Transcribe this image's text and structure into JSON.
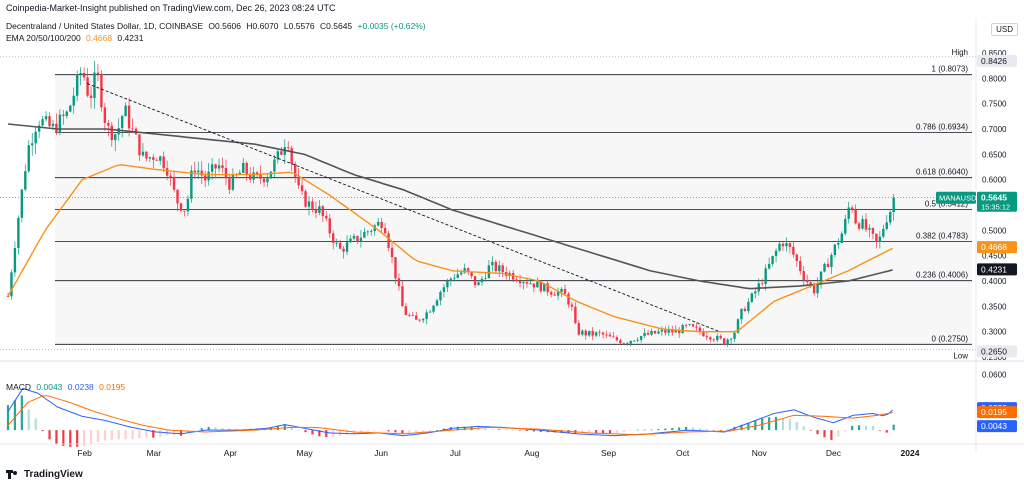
{
  "header": {
    "published": "Coinpedia-Market-Insight published on TradingView.com, Dec 26, 2023 08:24 UTC",
    "symbol": "Decentraland / United States Dollar, 1D, COINBASE",
    "open": "O0.5606",
    "high": "H0.6070",
    "low": "L0.5576",
    "close": "C0.5645",
    "change": "+0.0035 (+0.62%)",
    "ema_label": "EMA 20/50/100/200",
    "ema_a": "0.4668",
    "ema_b": "0.4231",
    "currency": "USD"
  },
  "macd_legend": {
    "label": "MACD",
    "hist": "0.0043",
    "macd": "0.0238",
    "signal": "0.0195"
  },
  "brand": "TradingView",
  "colors": {
    "up": "#089981",
    "down": "#f23645",
    "ema_fast": "#f7931a",
    "ema_slow": "#555555",
    "macd_line": "#2962ff",
    "signal_line": "#ff6d00"
  },
  "chart_data": [
    {
      "type": "candlestick",
      "title": "Decentraland / United States Dollar, 1D, COINBASE",
      "ylim": [
        0.25,
        0.86
      ],
      "y_ticks": [
        "0.8500",
        "0.8000",
        "0.7500",
        "0.7000",
        "0.6500",
        "0.6000",
        "0.5500",
        "0.5000",
        "0.4500",
        "0.4000",
        "0.3500",
        "0.3000",
        "0.2500"
      ],
      "y_tick_values": [
        0.85,
        0.8,
        0.75,
        0.7,
        0.65,
        0.6,
        0.55,
        0.5,
        0.45,
        0.4,
        0.35,
        0.3,
        0.25
      ],
      "x_ticks": [
        "Feb",
        "Mar",
        "Apr",
        "May",
        "Jun",
        "Jul",
        "Aug",
        "Sep",
        "Oct",
        "Nov",
        "Dec",
        "2024"
      ],
      "x_tick_days": [
        31,
        59,
        90,
        120,
        151,
        181,
        212,
        243,
        273,
        304,
        334,
        365
      ],
      "x_range_days": [
        0,
        365
      ],
      "price_anchors": [
        [
          0,
          0.37
        ],
        [
          4,
          0.52
        ],
        [
          8,
          0.66
        ],
        [
          12,
          0.72
        ],
        [
          18,
          0.7
        ],
        [
          24,
          0.73
        ],
        [
          28,
          0.79
        ],
        [
          30,
          0.82
        ],
        [
          33,
          0.76
        ],
        [
          36,
          0.81
        ],
        [
          40,
          0.7
        ],
        [
          44,
          0.69
        ],
        [
          47,
          0.74
        ],
        [
          50,
          0.7
        ],
        [
          55,
          0.64
        ],
        [
          60,
          0.65
        ],
        [
          64,
          0.63
        ],
        [
          68,
          0.56
        ],
        [
          72,
          0.54
        ],
        [
          75,
          0.63
        ],
        [
          80,
          0.6
        ],
        [
          85,
          0.63
        ],
        [
          90,
          0.59
        ],
        [
          95,
          0.62
        ],
        [
          100,
          0.6
        ],
        [
          105,
          0.61
        ],
        [
          110,
          0.65
        ],
        [
          113,
          0.69
        ],
        [
          115,
          0.63
        ],
        [
          118,
          0.57
        ],
        [
          122,
          0.55
        ],
        [
          126,
          0.54
        ],
        [
          130,
          0.5
        ],
        [
          134,
          0.46
        ],
        [
          140,
          0.48
        ],
        [
          146,
          0.5
        ],
        [
          152,
          0.52
        ],
        [
          156,
          0.43
        ],
        [
          160,
          0.34
        ],
        [
          165,
          0.32
        ],
        [
          170,
          0.34
        ],
        [
          175,
          0.38
        ],
        [
          180,
          0.41
        ],
        [
          185,
          0.42
        ],
        [
          190,
          0.39
        ],
        [
          195,
          0.43
        ],
        [
          200,
          0.42
        ],
        [
          205,
          0.41
        ],
        [
          210,
          0.4
        ],
        [
          215,
          0.39
        ],
        [
          220,
          0.38
        ],
        [
          225,
          0.375
        ],
        [
          228,
          0.35
        ],
        [
          230,
          0.3
        ],
        [
          235,
          0.295
        ],
        [
          240,
          0.295
        ],
        [
          245,
          0.285
        ],
        [
          250,
          0.28
        ],
        [
          255,
          0.29
        ],
        [
          260,
          0.295
        ],
        [
          265,
          0.3
        ],
        [
          270,
          0.3
        ],
        [
          275,
          0.31
        ],
        [
          280,
          0.3
        ],
        [
          285,
          0.29
        ],
        [
          290,
          0.28
        ],
        [
          294,
          0.3
        ],
        [
          297,
          0.34
        ],
        [
          300,
          0.36
        ],
        [
          305,
          0.4
        ],
        [
          310,
          0.45
        ],
        [
          313,
          0.48
        ],
        [
          317,
          0.46
        ],
        [
          322,
          0.41
        ],
        [
          326,
          0.38
        ],
        [
          330,
          0.42
        ],
        [
          334,
          0.46
        ],
        [
          338,
          0.5
        ],
        [
          341,
          0.56
        ],
        [
          343,
          0.52
        ],
        [
          346,
          0.51
        ],
        [
          349,
          0.49
        ],
        [
          352,
          0.47
        ],
        [
          355,
          0.52
        ],
        [
          358,
          0.55
        ],
        [
          359,
          0.5645
        ]
      ],
      "fib_levels": [
        {
          "label": "1 (0.8073)",
          "value": 0.8073
        },
        {
          "label": "0.786 (0.6934)",
          "value": 0.6934
        },
        {
          "label": "0.618 (0.6040)",
          "value": 0.604
        },
        {
          "label": "0.5 (0.5412)",
          "value": 0.5412
        },
        {
          "label": "0.382 (0.4783)",
          "value": 0.4783
        },
        {
          "label": "0.236 (0.4006)",
          "value": 0.4006
        },
        {
          "label": "0 (0.2750)",
          "value": 0.275
        }
      ],
      "high": {
        "label": "High",
        "value": 0.8426,
        "text": "0.8426"
      },
      "low": {
        "label": "Low",
        "value": 0.265,
        "text": "0.2650"
      },
      "last_price": {
        "symbol": "MANAUSD",
        "value": 0.5645,
        "text": "0.5645",
        "countdown": "15:35:12"
      },
      "ema_tags": [
        {
          "value": 0.4668,
          "text": "0.4668",
          "color": "#f7931a"
        },
        {
          "value": 0.4231,
          "text": "0.4231",
          "color": "#131722"
        }
      ],
      "trendline": {
        "from": [
          32,
          0.79
        ],
        "to": [
          288,
          0.3
        ]
      },
      "ema_fast_anchors": [
        [
          0,
          0.37
        ],
        [
          15,
          0.5
        ],
        [
          30,
          0.6
        ],
        [
          45,
          0.63
        ],
        [
          60,
          0.62
        ],
        [
          80,
          0.61
        ],
        [
          100,
          0.61
        ],
        [
          115,
          0.615
        ],
        [
          130,
          0.57
        ],
        [
          150,
          0.5
        ],
        [
          165,
          0.44
        ],
        [
          180,
          0.42
        ],
        [
          200,
          0.415
        ],
        [
          215,
          0.4
        ],
        [
          230,
          0.36
        ],
        [
          245,
          0.33
        ],
        [
          265,
          0.305
        ],
        [
          280,
          0.3
        ],
        [
          295,
          0.3
        ],
        [
          310,
          0.36
        ],
        [
          325,
          0.39
        ],
        [
          340,
          0.42
        ],
        [
          352,
          0.45
        ],
        [
          359,
          0.4668
        ]
      ],
      "ema_slow_anchors": [
        [
          0,
          0.71
        ],
        [
          20,
          0.7
        ],
        [
          40,
          0.7
        ],
        [
          60,
          0.69
        ],
        [
          80,
          0.68
        ],
        [
          100,
          0.67
        ],
        [
          120,
          0.65
        ],
        [
          140,
          0.61
        ],
        [
          160,
          0.58
        ],
        [
          180,
          0.54
        ],
        [
          200,
          0.51
        ],
        [
          220,
          0.48
        ],
        [
          240,
          0.45
        ],
        [
          260,
          0.42
        ],
        [
          280,
          0.4
        ],
        [
          300,
          0.385
        ],
        [
          320,
          0.39
        ],
        [
          340,
          0.4
        ],
        [
          359,
          0.4231
        ]
      ]
    },
    {
      "type": "macd",
      "title": "MACD",
      "ylim": [
        -0.015,
        0.065
      ],
      "y_ticks": [
        "0.0600"
      ],
      "y_tick_values": [
        0.06
      ],
      "macd_anchors": [
        [
          0,
          0.02
        ],
        [
          6,
          0.045
        ],
        [
          12,
          0.04
        ],
        [
          20,
          0.025
        ],
        [
          30,
          0.015
        ],
        [
          40,
          0.01
        ],
        [
          50,
          0.003
        ],
        [
          60,
          -0.002
        ],
        [
          70,
          -0.004
        ],
        [
          80,
          0.0
        ],
        [
          95,
          0.0
        ],
        [
          105,
          0.002
        ],
        [
          112,
          0.006
        ],
        [
          120,
          0.002
        ],
        [
          130,
          -0.003
        ],
        [
          140,
          -0.004
        ],
        [
          150,
          -0.003
        ],
        [
          160,
          -0.006
        ],
        [
          170,
          -0.003
        ],
        [
          180,
          0.002
        ],
        [
          190,
          0.004
        ],
        [
          200,
          0.003
        ],
        [
          215,
          0.0
        ],
        [
          230,
          -0.004
        ],
        [
          245,
          -0.006
        ],
        [
          260,
          -0.004
        ],
        [
          275,
          0.0
        ],
        [
          290,
          -0.002
        ],
        [
          300,
          0.008
        ],
        [
          310,
          0.018
        ],
        [
          318,
          0.022
        ],
        [
          326,
          0.014
        ],
        [
          334,
          0.008
        ],
        [
          342,
          0.016
        ],
        [
          350,
          0.018
        ],
        [
          355,
          0.015
        ],
        [
          359,
          0.0238
        ]
      ],
      "signal_anchors": [
        [
          0,
          0.005
        ],
        [
          8,
          0.03
        ],
        [
          15,
          0.038
        ],
        [
          25,
          0.03
        ],
        [
          35,
          0.02
        ],
        [
          45,
          0.012
        ],
        [
          55,
          0.005
        ],
        [
          65,
          0.0
        ],
        [
          80,
          -0.002
        ],
        [
          100,
          0.0
        ],
        [
          115,
          0.003
        ],
        [
          125,
          0.003
        ],
        [
          140,
          -0.002
        ],
        [
          160,
          -0.004
        ],
        [
          180,
          0.0
        ],
        [
          195,
          0.003
        ],
        [
          215,
          0.001
        ],
        [
          235,
          -0.003
        ],
        [
          255,
          -0.005
        ],
        [
          275,
          -0.002
        ],
        [
          292,
          -0.001
        ],
        [
          305,
          0.006
        ],
        [
          318,
          0.016
        ],
        [
          330,
          0.015
        ],
        [
          342,
          0.013
        ],
        [
          352,
          0.016
        ],
        [
          359,
          0.0195
        ]
      ],
      "tags": [
        {
          "value": 0.0238,
          "text": "0.0238",
          "color": "#2962ff"
        },
        {
          "value": 0.0195,
          "text": "0.0195",
          "color": "#ff6d00"
        },
        {
          "value": 0.0043,
          "text": "0.0043",
          "color": "#2962ff"
        }
      ]
    }
  ]
}
